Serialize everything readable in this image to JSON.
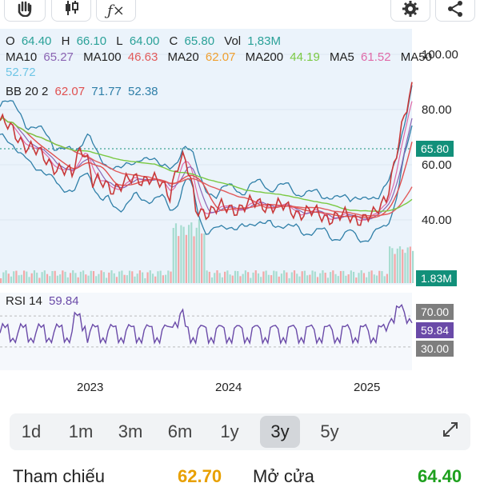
{
  "toolbar": {
    "hand_icon": "hand-icon",
    "candles_icon": "candlestick-icon",
    "indicator_icon": "function-icon",
    "settings_icon": "gear-icon",
    "share_icon": "share-icon"
  },
  "legend": {
    "ohlc": [
      {
        "label": "O",
        "value": "64.40"
      },
      {
        "label": "H",
        "value": "66.10"
      },
      {
        "label": "L",
        "value": "64.00"
      },
      {
        "label": "C",
        "value": "65.80"
      },
      {
        "label": "Vol",
        "value": "1,83M"
      }
    ],
    "ma": [
      {
        "label": "MA10",
        "value": "65.27",
        "color": "#8b64b3"
      },
      {
        "label": "MA100",
        "value": "46.63",
        "color": "#e25b5b"
      },
      {
        "label": "MA20",
        "value": "62.07",
        "color": "#f0a030"
      },
      {
        "label": "MA200",
        "value": "44.19",
        "color": "#7ac943"
      },
      {
        "label": "MA5",
        "value": "61.52",
        "color": "#e06aa8"
      },
      {
        "label": "MA50",
        "value": "52.72",
        "color": "#6fc6e6"
      }
    ],
    "bb": {
      "label": "BB 20 2",
      "values": [
        "62.07",
        "71.77",
        "52.38"
      ],
      "colors": [
        "#e05050",
        "#2f7fa8",
        "#2f7fa8"
      ]
    }
  },
  "price_axis": {
    "ticks": [
      "100.00",
      "80.00",
      "60.00",
      "40.00"
    ],
    "last_price": "65.80",
    "volume_tag": "1.83M"
  },
  "rsi": {
    "label": "RSI 14",
    "value": "59.84",
    "upper": "70.00",
    "lower": "30.00"
  },
  "time_axis": [
    "2023",
    "2024",
    "2025"
  ],
  "chart_data": {
    "type": "line",
    "title": "",
    "x": [
      "2022-06",
      "2022-09",
      "2022-12",
      "2023-03",
      "2023-06",
      "2023-09",
      "2023-12",
      "2024-03",
      "2024-06",
      "2024-09",
      "2024-12",
      "2025-03"
    ],
    "series": [
      {
        "name": "C",
        "values": [
          76,
          64,
          55,
          52,
          56,
          43,
          44,
          46,
          43,
          41,
          41,
          65.8
        ]
      }
    ],
    "ylim": [
      20,
      100
    ]
  },
  "ranges": {
    "items": [
      "1d",
      "1m",
      "3m",
      "6m",
      "1y",
      "3y",
      "5y"
    ],
    "active": "3y",
    "expand_icon": "expand-icon"
  },
  "footer": {
    "ref_label": "Tham chiếu",
    "ref_value": "62.70",
    "open_label": "Mở cửa",
    "open_value": "64.40"
  }
}
